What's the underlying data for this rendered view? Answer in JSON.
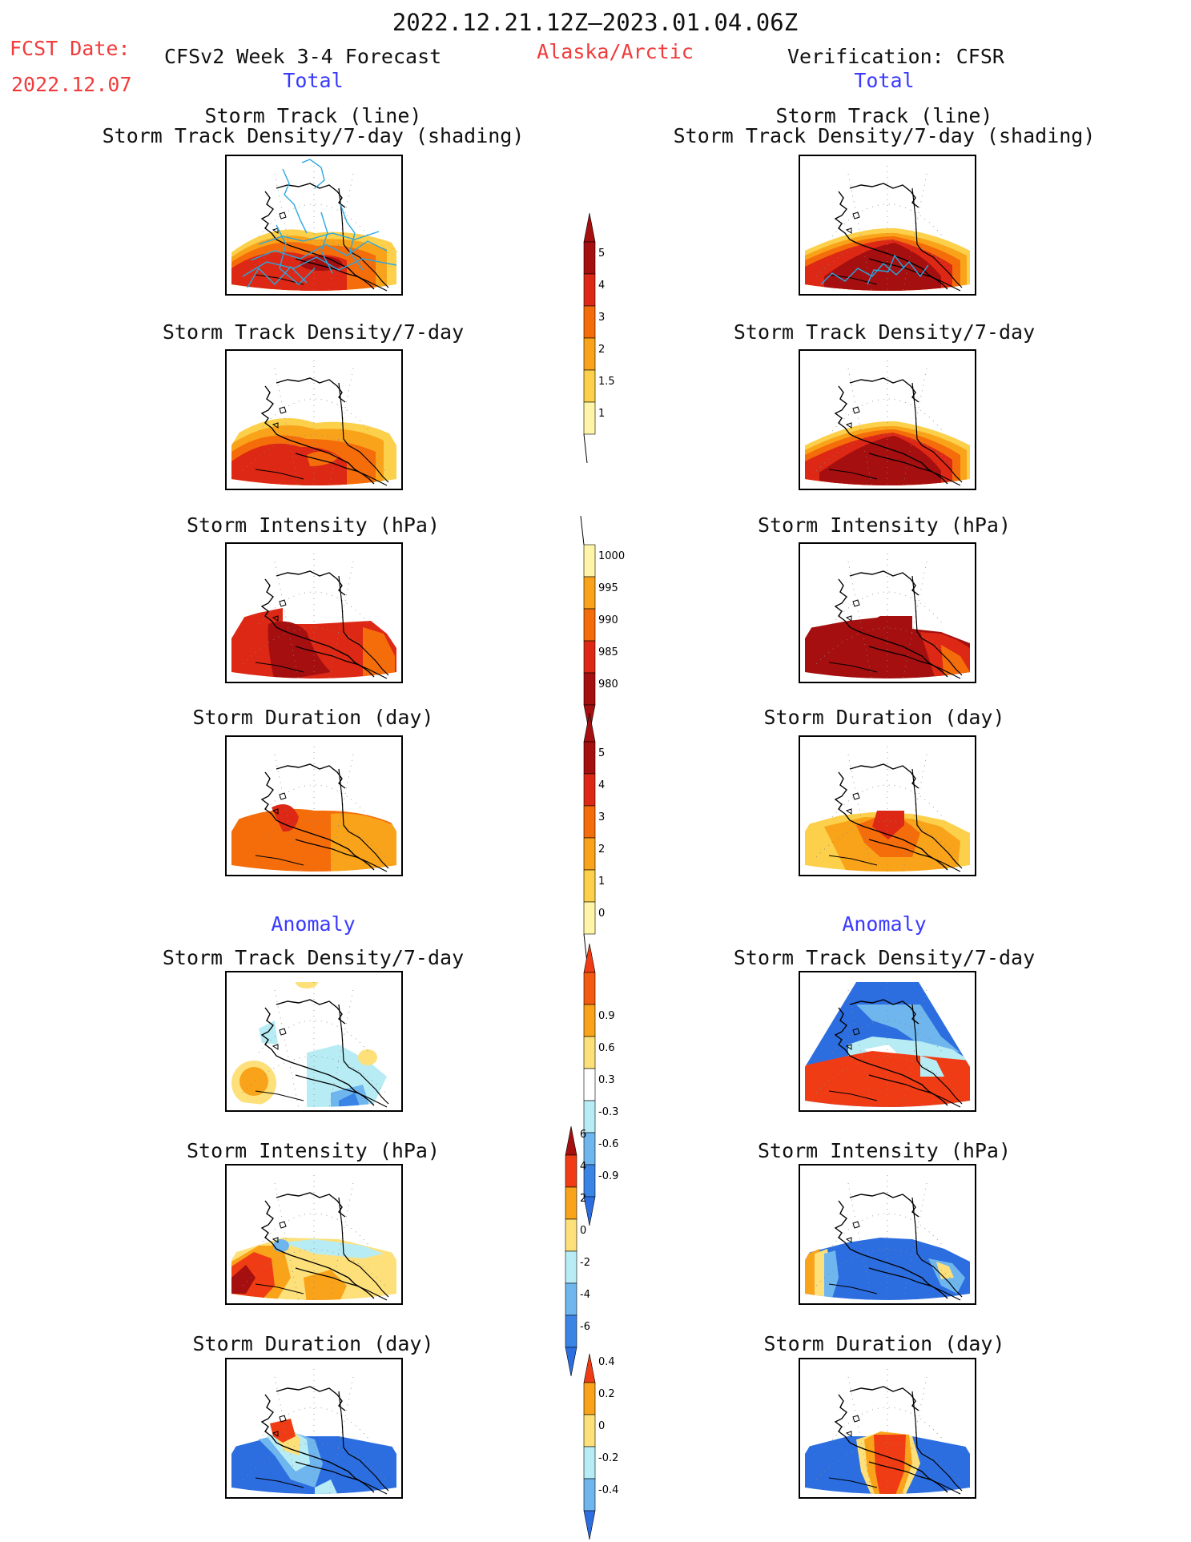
{
  "header": {
    "period": "2022.12.21.12Z–2023.01.04.06Z",
    "fcst_label": "FCST Date:",
    "fcst_date": "2022.12.07",
    "left_title": "CFSv2 Week 3-4 Forecast",
    "region": "Alaska/Arctic",
    "right_title": "Verification: CFSR"
  },
  "sections": {
    "total": "Total",
    "anomaly": "Anomaly"
  },
  "panel_titles": {
    "track_line": "Storm Track (line)",
    "track_shading": "Storm Track Density/7-day (shading)",
    "density": "Storm Track Density/7-day",
    "intensity": "Storm Intensity (hPa)",
    "duration": "Storm Duration (day)"
  },
  "colorbars": [
    {
      "id": "density_total",
      "labels": [
        "5",
        "4",
        "3",
        "2",
        "1.5",
        "1"
      ],
      "colors": [
        "#a50f0f",
        "#dc2814",
        "#f56d0a",
        "#f9a31a",
        "#fcd04a",
        "#fff5a8"
      ],
      "tri_top": "#a50f0f"
    },
    {
      "id": "intensity_total",
      "labels": [
        "1000",
        "995",
        "990",
        "985",
        "980"
      ],
      "colors": [
        "#fff5a8",
        "#f9a31a",
        "#f56d0a",
        "#dc2814",
        "#a50f0f"
      ],
      "tri_bottom": "#a50f0f"
    },
    {
      "id": "duration_total",
      "labels": [
        "5",
        "4",
        "3",
        "2",
        "1",
        "0"
      ],
      "colors": [
        "#a50f0f",
        "#dc2814",
        "#f56d0a",
        "#f9a31a",
        "#fcd04a",
        "#fff5a8"
      ],
      "tri_top": "#a50f0f"
    },
    {
      "id": "density_anom",
      "labels": [
        "0.9",
        "0.6",
        "0.3",
        "-0.3",
        "-0.6",
        "-0.9"
      ],
      "colors": [
        "#f55a12",
        "#f9a31a",
        "#fde07a",
        "#ffffff",
        "#b8ecf5",
        "#6fb6ee",
        "#3a84e6"
      ],
      "tri_top": "#f03c14",
      "tri_bottom": "#2c6ee0"
    },
    {
      "id": "intensity_anom",
      "labels": [
        "6",
        "4",
        "2",
        "0",
        "-2",
        "-4",
        "-6"
      ],
      "colors": [
        "#f03c14",
        "#f9a31a",
        "#fde07a",
        "#b8ecf5",
        "#6fb6ee",
        "#3a84e6"
      ],
      "tri_top": "#a50f0f",
      "tri_bottom": "#2c6ee0"
    },
    {
      "id": "duration_anom",
      "labels": [
        "0.4",
        "0.2",
        "0",
        "-0.2",
        "-0.4"
      ],
      "colors": [
        "#f9a31a",
        "#fde07a",
        "#b8ecf5",
        "#6fb6ee"
      ],
      "tri_top": "#f03c14",
      "tri_bottom": "#2c6ee0"
    }
  ],
  "chart_data": [
    {
      "type": "heatmap",
      "panel": "forecast-storm-track",
      "title": "Storm Track (line) / Storm Track Density/7-day (shading)",
      "field_levels": [
        1,
        1.5,
        2,
        3,
        4,
        5
      ]
    },
    {
      "type": "heatmap",
      "panel": "verification-storm-track",
      "title": "Storm Track (line) / Storm Track Density/7-day (shading)",
      "field_levels": [
        1,
        1.5,
        2,
        3,
        4,
        5
      ]
    },
    {
      "type": "heatmap",
      "panel": "forecast-density-total",
      "title": "Storm Track Density/7-day",
      "field_levels": [
        1,
        1.5,
        2,
        3,
        4,
        5
      ]
    },
    {
      "type": "heatmap",
      "panel": "verification-density-total",
      "title": "Storm Track Density/7-day",
      "field_levels": [
        1,
        1.5,
        2,
        3,
        4,
        5
      ]
    },
    {
      "type": "heatmap",
      "panel": "forecast-intensity-total",
      "title": "Storm Intensity (hPa)",
      "field_levels": [
        980,
        985,
        990,
        995,
        1000
      ]
    },
    {
      "type": "heatmap",
      "panel": "verification-intensity-total",
      "title": "Storm Intensity (hPa)",
      "field_levels": [
        980,
        985,
        990,
        995,
        1000
      ]
    },
    {
      "type": "heatmap",
      "panel": "forecast-duration-total",
      "title": "Storm Duration (day)",
      "field_levels": [
        0,
        1,
        2,
        3,
        4,
        5
      ]
    },
    {
      "type": "heatmap",
      "panel": "verification-duration-total",
      "title": "Storm Duration (day)",
      "field_levels": [
        0,
        1,
        2,
        3,
        4,
        5
      ]
    },
    {
      "type": "heatmap",
      "panel": "forecast-density-anomaly",
      "title": "Storm Track Density/7-day",
      "field_levels": [
        -0.9,
        -0.6,
        -0.3,
        0.3,
        0.6,
        0.9
      ]
    },
    {
      "type": "heatmap",
      "panel": "verification-density-anomaly",
      "title": "Storm Track Density/7-day",
      "field_levels": [
        -0.9,
        -0.6,
        -0.3,
        0.3,
        0.6,
        0.9
      ]
    },
    {
      "type": "heatmap",
      "panel": "forecast-intensity-anomaly",
      "title": "Storm Intensity (hPa)",
      "field_levels": [
        -6,
        -4,
        -2,
        0,
        2,
        4,
        6
      ]
    },
    {
      "type": "heatmap",
      "panel": "verification-intensity-anomaly",
      "title": "Storm Intensity (hPa)",
      "field_levels": [
        -6,
        -4,
        -2,
        0,
        2,
        4,
        6
      ]
    },
    {
      "type": "heatmap",
      "panel": "forecast-duration-anomaly",
      "title": "Storm Duration (day)",
      "field_levels": [
        -0.4,
        -0.2,
        0,
        0.2,
        0.4
      ]
    },
    {
      "type": "heatmap",
      "panel": "verification-duration-anomaly",
      "title": "Storm Duration (day)",
      "field_levels": [
        -0.4,
        -0.2,
        0,
        0.2,
        0.4
      ]
    }
  ]
}
